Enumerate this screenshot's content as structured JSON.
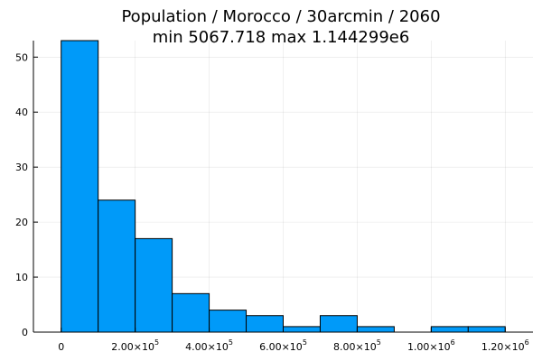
{
  "title_line_1": "Population / Morocco / 30arcmin / 2060",
  "title_line_2": "min 5067.718  max 1.144299e6",
  "colors": {
    "bar_fill": "#009af9",
    "bar_stroke": "#000000"
  },
  "chart_data": {
    "type": "bar",
    "subtype": "histogram",
    "title": "Population / Morocco / 30arcmin / 2060\nmin 5067.718  max 1.144299e6",
    "bin_edges": [
      0,
      100000,
      200000,
      300000,
      400000,
      500000,
      600000,
      700000,
      800000,
      900000,
      1000000,
      1100000,
      1200000
    ],
    "counts": [
      53,
      24,
      17,
      7,
      4,
      3,
      1,
      3,
      1,
      0,
      1,
      1
    ],
    "xlim": [
      -75000,
      1275000
    ],
    "ylim": [
      0,
      53
    ],
    "x_ticks": [
      {
        "value": 0,
        "mantissa": "0",
        "exp": ""
      },
      {
        "value": 200000,
        "mantissa": "2.00×10",
        "exp": "5"
      },
      {
        "value": 400000,
        "mantissa": "4.00×10",
        "exp": "5"
      },
      {
        "value": 600000,
        "mantissa": "6.00×10",
        "exp": "5"
      },
      {
        "value": 800000,
        "mantissa": "8.00×10",
        "exp": "5"
      },
      {
        "value": 1000000,
        "mantissa": "1.00×10",
        "exp": "6"
      },
      {
        "value": 1200000,
        "mantissa": "1.20×10",
        "exp": "6"
      }
    ],
    "y_ticks": [
      {
        "value": 0,
        "label": "0"
      },
      {
        "value": 10,
        "label": "10"
      },
      {
        "value": 20,
        "label": "20"
      },
      {
        "value": 30,
        "label": "30"
      },
      {
        "value": 40,
        "label": "40"
      },
      {
        "value": 50,
        "label": "50"
      }
    ],
    "xlabel": "",
    "ylabel": "",
    "grid": true,
    "legend": "none"
  }
}
